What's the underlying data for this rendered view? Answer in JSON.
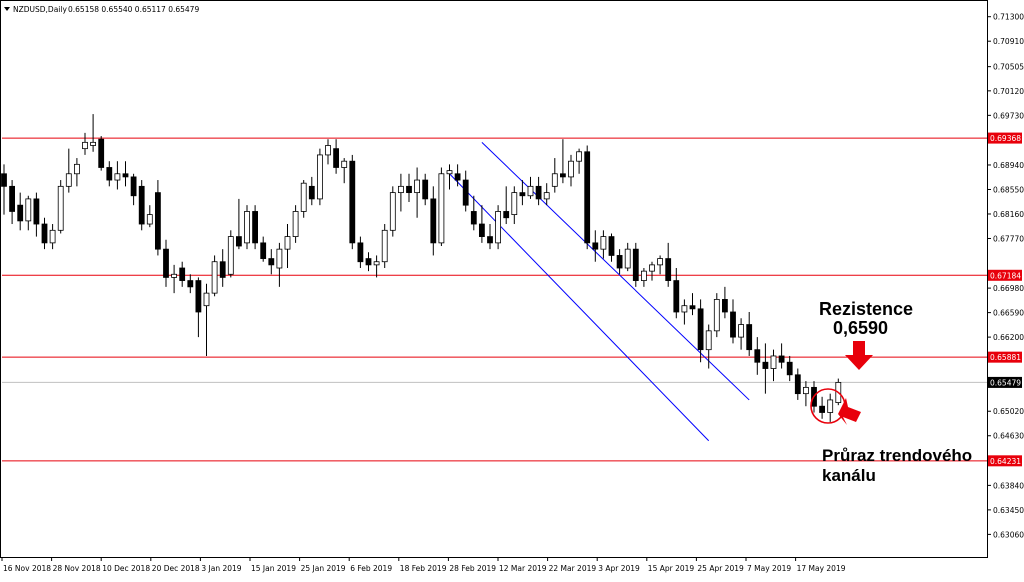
{
  "header": {
    "symbol": "NZDUSD,Daily",
    "ohlc": "0.65158 0.65540 0.65117 0.65479"
  },
  "chart_data": {
    "type": "candlestick",
    "symbol": "NZDUSD",
    "timeframe": "Daily",
    "ylim": [
      0.627,
      0.7155
    ],
    "y_ticks": [
      "0.71300",
      "0.70910",
      "0.70505",
      "0.70120",
      "0.69730",
      "0.69368",
      "0.68940",
      "0.68550",
      "0.68160",
      "0.67770",
      "0.67184",
      "0.66980",
      "0.66590",
      "0.66200",
      "0.65881",
      "0.65479",
      "0.65020",
      "0.64630",
      "0.64231",
      "0.63840",
      "0.63450",
      "0.63060"
    ],
    "x_labels": [
      "16 Nov 2018",
      "28 Nov 2018",
      "10 Dec 2018",
      "20 Dec 2018",
      "3 Jan 2019",
      "15 Jan 2019",
      "25 Jan 2019",
      "6 Feb 2019",
      "18 Feb 2019",
      "28 Feb 2019",
      "12 Mar 2019",
      "22 Mar 2019",
      "3 Apr 2019",
      "15 Apr 2019",
      "25 Apr 2019",
      "7 May 2019",
      "17 May 2019"
    ],
    "horizontal_levels": [
      {
        "value": 0.69368,
        "label": "0.69368",
        "color": "#e8000b"
      },
      {
        "value": 0.67184,
        "label": "0.67184",
        "color": "#e8000b"
      },
      {
        "value": 0.65881,
        "label": "0.65881",
        "color": "#e8000b"
      },
      {
        "value": 0.64231,
        "label": "0.64231",
        "color": "#e8000b"
      }
    ],
    "current_price": {
      "value": 0.65479,
      "label": "0.65479"
    },
    "channel": {
      "color": "#0000ff",
      "upper": {
        "from": [
          59,
          0.693
        ],
        "to": [
          92,
          0.652
        ]
      },
      "lower": {
        "from": [
          55,
          0.688
        ],
        "to": [
          87,
          0.6455
        ]
      }
    },
    "candles": [
      {
        "o": 0.688,
        "h": 0.6895,
        "l": 0.6815,
        "c": 0.686
      },
      {
        "o": 0.686,
        "h": 0.687,
        "l": 0.68,
        "c": 0.682
      },
      {
        "o": 0.683,
        "h": 0.685,
        "l": 0.679,
        "c": 0.6805
      },
      {
        "o": 0.6805,
        "h": 0.6845,
        "l": 0.679,
        "c": 0.684
      },
      {
        "o": 0.684,
        "h": 0.685,
        "l": 0.678,
        "c": 0.68
      },
      {
        "o": 0.68,
        "h": 0.681,
        "l": 0.676,
        "c": 0.677
      },
      {
        "o": 0.677,
        "h": 0.68,
        "l": 0.676,
        "c": 0.679
      },
      {
        "o": 0.679,
        "h": 0.687,
        "l": 0.6785,
        "c": 0.686
      },
      {
        "o": 0.686,
        "h": 0.692,
        "l": 0.685,
        "c": 0.688
      },
      {
        "o": 0.688,
        "h": 0.6905,
        "l": 0.686,
        "c": 0.6895
      },
      {
        "o": 0.692,
        "h": 0.6945,
        "l": 0.691,
        "c": 0.693
      },
      {
        "o": 0.6925,
        "h": 0.6975,
        "l": 0.6915,
        "c": 0.693
      },
      {
        "o": 0.6935,
        "h": 0.694,
        "l": 0.6885,
        "c": 0.689
      },
      {
        "o": 0.689,
        "h": 0.69,
        "l": 0.686,
        "c": 0.687
      },
      {
        "o": 0.687,
        "h": 0.69,
        "l": 0.6855,
        "c": 0.688
      },
      {
        "o": 0.688,
        "h": 0.69,
        "l": 0.686,
        "c": 0.6875
      },
      {
        "o": 0.6875,
        "h": 0.688,
        "l": 0.683,
        "c": 0.6845
      },
      {
        "o": 0.686,
        "h": 0.687,
        "l": 0.679,
        "c": 0.68
      },
      {
        "o": 0.68,
        "h": 0.683,
        "l": 0.6795,
        "c": 0.6815
      },
      {
        "o": 0.685,
        "h": 0.687,
        "l": 0.675,
        "c": 0.676
      },
      {
        "o": 0.676,
        "h": 0.6775,
        "l": 0.67,
        "c": 0.6715
      },
      {
        "o": 0.6715,
        "h": 0.6735,
        "l": 0.669,
        "c": 0.672
      },
      {
        "o": 0.673,
        "h": 0.674,
        "l": 0.67,
        "c": 0.671
      },
      {
        "o": 0.671,
        "h": 0.672,
        "l": 0.669,
        "c": 0.67
      },
      {
        "o": 0.671,
        "h": 0.6715,
        "l": 0.662,
        "c": 0.666
      },
      {
        "o": 0.667,
        "h": 0.6705,
        "l": 0.659,
        "c": 0.669
      },
      {
        "o": 0.669,
        "h": 0.675,
        "l": 0.6685,
        "c": 0.674
      },
      {
        "o": 0.674,
        "h": 0.676,
        "l": 0.67,
        "c": 0.6715
      },
      {
        "o": 0.672,
        "h": 0.679,
        "l": 0.6715,
        "c": 0.678
      },
      {
        "o": 0.678,
        "h": 0.684,
        "l": 0.676,
        "c": 0.6765
      },
      {
        "o": 0.677,
        "h": 0.683,
        "l": 0.676,
        "c": 0.682
      },
      {
        "o": 0.682,
        "h": 0.683,
        "l": 0.676,
        "c": 0.677
      },
      {
        "o": 0.677,
        "h": 0.678,
        "l": 0.674,
        "c": 0.6745
      },
      {
        "o": 0.6745,
        "h": 0.676,
        "l": 0.672,
        "c": 0.6735
      },
      {
        "o": 0.673,
        "h": 0.677,
        "l": 0.67,
        "c": 0.676
      },
      {
        "o": 0.676,
        "h": 0.68,
        "l": 0.673,
        "c": 0.678
      },
      {
        "o": 0.678,
        "h": 0.683,
        "l": 0.677,
        "c": 0.682
      },
      {
        "o": 0.682,
        "h": 0.687,
        "l": 0.681,
        "c": 0.6865
      },
      {
        "o": 0.686,
        "h": 0.6875,
        "l": 0.683,
        "c": 0.684
      },
      {
        "o": 0.684,
        "h": 0.692,
        "l": 0.683,
        "c": 0.691
      },
      {
        "o": 0.691,
        "h": 0.6935,
        "l": 0.6895,
        "c": 0.6925
      },
      {
        "o": 0.692,
        "h": 0.6935,
        "l": 0.688,
        "c": 0.689
      },
      {
        "o": 0.689,
        "h": 0.6905,
        "l": 0.6865,
        "c": 0.69
      },
      {
        "o": 0.69,
        "h": 0.691,
        "l": 0.676,
        "c": 0.677
      },
      {
        "o": 0.677,
        "h": 0.678,
        "l": 0.673,
        "c": 0.674
      },
      {
        "o": 0.6745,
        "h": 0.6755,
        "l": 0.6725,
        "c": 0.6735
      },
      {
        "o": 0.6735,
        "h": 0.675,
        "l": 0.6715,
        "c": 0.674
      },
      {
        "o": 0.674,
        "h": 0.68,
        "l": 0.673,
        "c": 0.679
      },
      {
        "o": 0.679,
        "h": 0.686,
        "l": 0.678,
        "c": 0.685
      },
      {
        "o": 0.685,
        "h": 0.688,
        "l": 0.682,
        "c": 0.686
      },
      {
        "o": 0.686,
        "h": 0.688,
        "l": 0.6835,
        "c": 0.685
      },
      {
        "o": 0.685,
        "h": 0.689,
        "l": 0.681,
        "c": 0.687
      },
      {
        "o": 0.687,
        "h": 0.688,
        "l": 0.683,
        "c": 0.684
      },
      {
        "o": 0.684,
        "h": 0.686,
        "l": 0.675,
        "c": 0.677
      },
      {
        "o": 0.677,
        "h": 0.689,
        "l": 0.6765,
        "c": 0.688
      },
      {
        "o": 0.688,
        "h": 0.6895,
        "l": 0.6855,
        "c": 0.6885
      },
      {
        "o": 0.688,
        "h": 0.6895,
        "l": 0.686,
        "c": 0.687
      },
      {
        "o": 0.687,
        "h": 0.6885,
        "l": 0.682,
        "c": 0.683
      },
      {
        "o": 0.682,
        "h": 0.6845,
        "l": 0.679,
        "c": 0.68
      },
      {
        "o": 0.68,
        "h": 0.683,
        "l": 0.677,
        "c": 0.678
      },
      {
        "o": 0.678,
        "h": 0.68,
        "l": 0.676,
        "c": 0.677
      },
      {
        "o": 0.677,
        "h": 0.683,
        "l": 0.676,
        "c": 0.682
      },
      {
        "o": 0.682,
        "h": 0.686,
        "l": 0.68,
        "c": 0.681
      },
      {
        "o": 0.6815,
        "h": 0.686,
        "l": 0.68,
        "c": 0.685
      },
      {
        "o": 0.685,
        "h": 0.687,
        "l": 0.683,
        "c": 0.6845
      },
      {
        "o": 0.6845,
        "h": 0.6875,
        "l": 0.684,
        "c": 0.686
      },
      {
        "o": 0.686,
        "h": 0.6875,
        "l": 0.683,
        "c": 0.684
      },
      {
        "o": 0.684,
        "h": 0.6865,
        "l": 0.683,
        "c": 0.685
      },
      {
        "o": 0.686,
        "h": 0.6905,
        "l": 0.685,
        "c": 0.688
      },
      {
        "o": 0.688,
        "h": 0.6935,
        "l": 0.6865,
        "c": 0.6875
      },
      {
        "o": 0.6875,
        "h": 0.691,
        "l": 0.686,
        "c": 0.69
      },
      {
        "o": 0.69,
        "h": 0.692,
        "l": 0.688,
        "c": 0.6915
      },
      {
        "o": 0.6915,
        "h": 0.6925,
        "l": 0.676,
        "c": 0.677
      },
      {
        "o": 0.677,
        "h": 0.679,
        "l": 0.674,
        "c": 0.676
      },
      {
        "o": 0.676,
        "h": 0.679,
        "l": 0.6745,
        "c": 0.678
      },
      {
        "o": 0.678,
        "h": 0.6785,
        "l": 0.674,
        "c": 0.675
      },
      {
        "o": 0.675,
        "h": 0.676,
        "l": 0.672,
        "c": 0.673
      },
      {
        "o": 0.673,
        "h": 0.677,
        "l": 0.6725,
        "c": 0.676
      },
      {
        "o": 0.676,
        "h": 0.677,
        "l": 0.67,
        "c": 0.671
      },
      {
        "o": 0.671,
        "h": 0.673,
        "l": 0.67,
        "c": 0.6725
      },
      {
        "o": 0.6725,
        "h": 0.674,
        "l": 0.671,
        "c": 0.6735
      },
      {
        "o": 0.6735,
        "h": 0.675,
        "l": 0.672,
        "c": 0.6745
      },
      {
        "o": 0.6745,
        "h": 0.677,
        "l": 0.67,
        "c": 0.671
      },
      {
        "o": 0.671,
        "h": 0.673,
        "l": 0.665,
        "c": 0.666
      },
      {
        "o": 0.666,
        "h": 0.668,
        "l": 0.664,
        "c": 0.667
      },
      {
        "o": 0.667,
        "h": 0.669,
        "l": 0.6655,
        "c": 0.6665
      },
      {
        "o": 0.6665,
        "h": 0.668,
        "l": 0.658,
        "c": 0.66
      },
      {
        "o": 0.66,
        "h": 0.664,
        "l": 0.657,
        "c": 0.663
      },
      {
        "o": 0.663,
        "h": 0.669,
        "l": 0.662,
        "c": 0.668
      },
      {
        "o": 0.668,
        "h": 0.67,
        "l": 0.665,
        "c": 0.666
      },
      {
        "o": 0.666,
        "h": 0.668,
        "l": 0.661,
        "c": 0.662
      },
      {
        "o": 0.662,
        "h": 0.665,
        "l": 0.66,
        "c": 0.664
      },
      {
        "o": 0.664,
        "h": 0.666,
        "l": 0.659,
        "c": 0.66
      },
      {
        "o": 0.66,
        "h": 0.662,
        "l": 0.656,
        "c": 0.658
      },
      {
        "o": 0.658,
        "h": 0.661,
        "l": 0.653,
        "c": 0.657
      },
      {
        "o": 0.657,
        "h": 0.66,
        "l": 0.655,
        "c": 0.659
      },
      {
        "o": 0.659,
        "h": 0.661,
        "l": 0.657,
        "c": 0.658
      },
      {
        "o": 0.658,
        "h": 0.659,
        "l": 0.655,
        "c": 0.656
      },
      {
        "o": 0.656,
        "h": 0.657,
        "l": 0.652,
        "c": 0.653
      },
      {
        "o": 0.653,
        "h": 0.655,
        "l": 0.651,
        "c": 0.654
      },
      {
        "o": 0.654,
        "h": 0.655,
        "l": 0.65,
        "c": 0.651
      },
      {
        "o": 0.651,
        "h": 0.6525,
        "l": 0.649,
        "c": 0.65
      },
      {
        "o": 0.65,
        "h": 0.653,
        "l": 0.6485,
        "c": 0.652
      },
      {
        "o": 0.65158,
        "h": 0.6554,
        "l": 0.65117,
        "c": 0.65479
      }
    ]
  },
  "annotations": {
    "resistance_title": "Rezistence",
    "resistance_value": "0,6590",
    "breakout_line1": "Průraz trendového",
    "breakout_line2": "kanálu",
    "arrow_color": "#e8000b",
    "circle_color": "#e8000b"
  },
  "colors": {
    "level_line": "#e8000b",
    "label_bg": "#e8000b",
    "label_text": "#ffffff",
    "channel": "#0000ff",
    "current_label_bg": "#000000"
  }
}
